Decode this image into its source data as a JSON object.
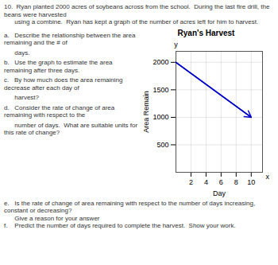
{
  "chart_data": {
    "type": "line",
    "title": "Ryan's Harvest",
    "xlabel": "Day",
    "ylabel": "Area Remain",
    "x": [
      0,
      10
    ],
    "values": [
      2000,
      1000
    ],
    "color": "#0000cc",
    "marker": "arrow",
    "xlim": [
      0,
      11.5
    ],
    "ylim": [
      0,
      2200
    ],
    "xticks": [
      2,
      4,
      6,
      8,
      10
    ],
    "yticks": [
      500,
      1000,
      1500,
      2000
    ],
    "grid": true,
    "annotations": [
      "10.  Ryan planted 2000 acres of soybeans across from the school.  During the last fire drill, the beans were harvested",
      "      using a combine.  Ryan has kept a graph of the number of acres left for him to harvest.",
      "a.   Describe the relationship between the area remaining and the # of",
      "      days.",
      "b.   Use the graph to estimate the area remaining after three days.",
      "c.   By how much does the area remaining decrease after each day of",
      "      harvest?",
      "d.   Consider the rate of change of area remaining with respect to the",
      "      number of days.  What are suitable units for this rate of change?",
      "e.   Is the rate of change of area remaining with respect to the number of days increasing, constant or decreasing?",
      "      Give a reason for your answer",
      "f.    Predict the number of days required to complete the harvest.  Show your work.",
      "y",
      "x"
    ]
  }
}
